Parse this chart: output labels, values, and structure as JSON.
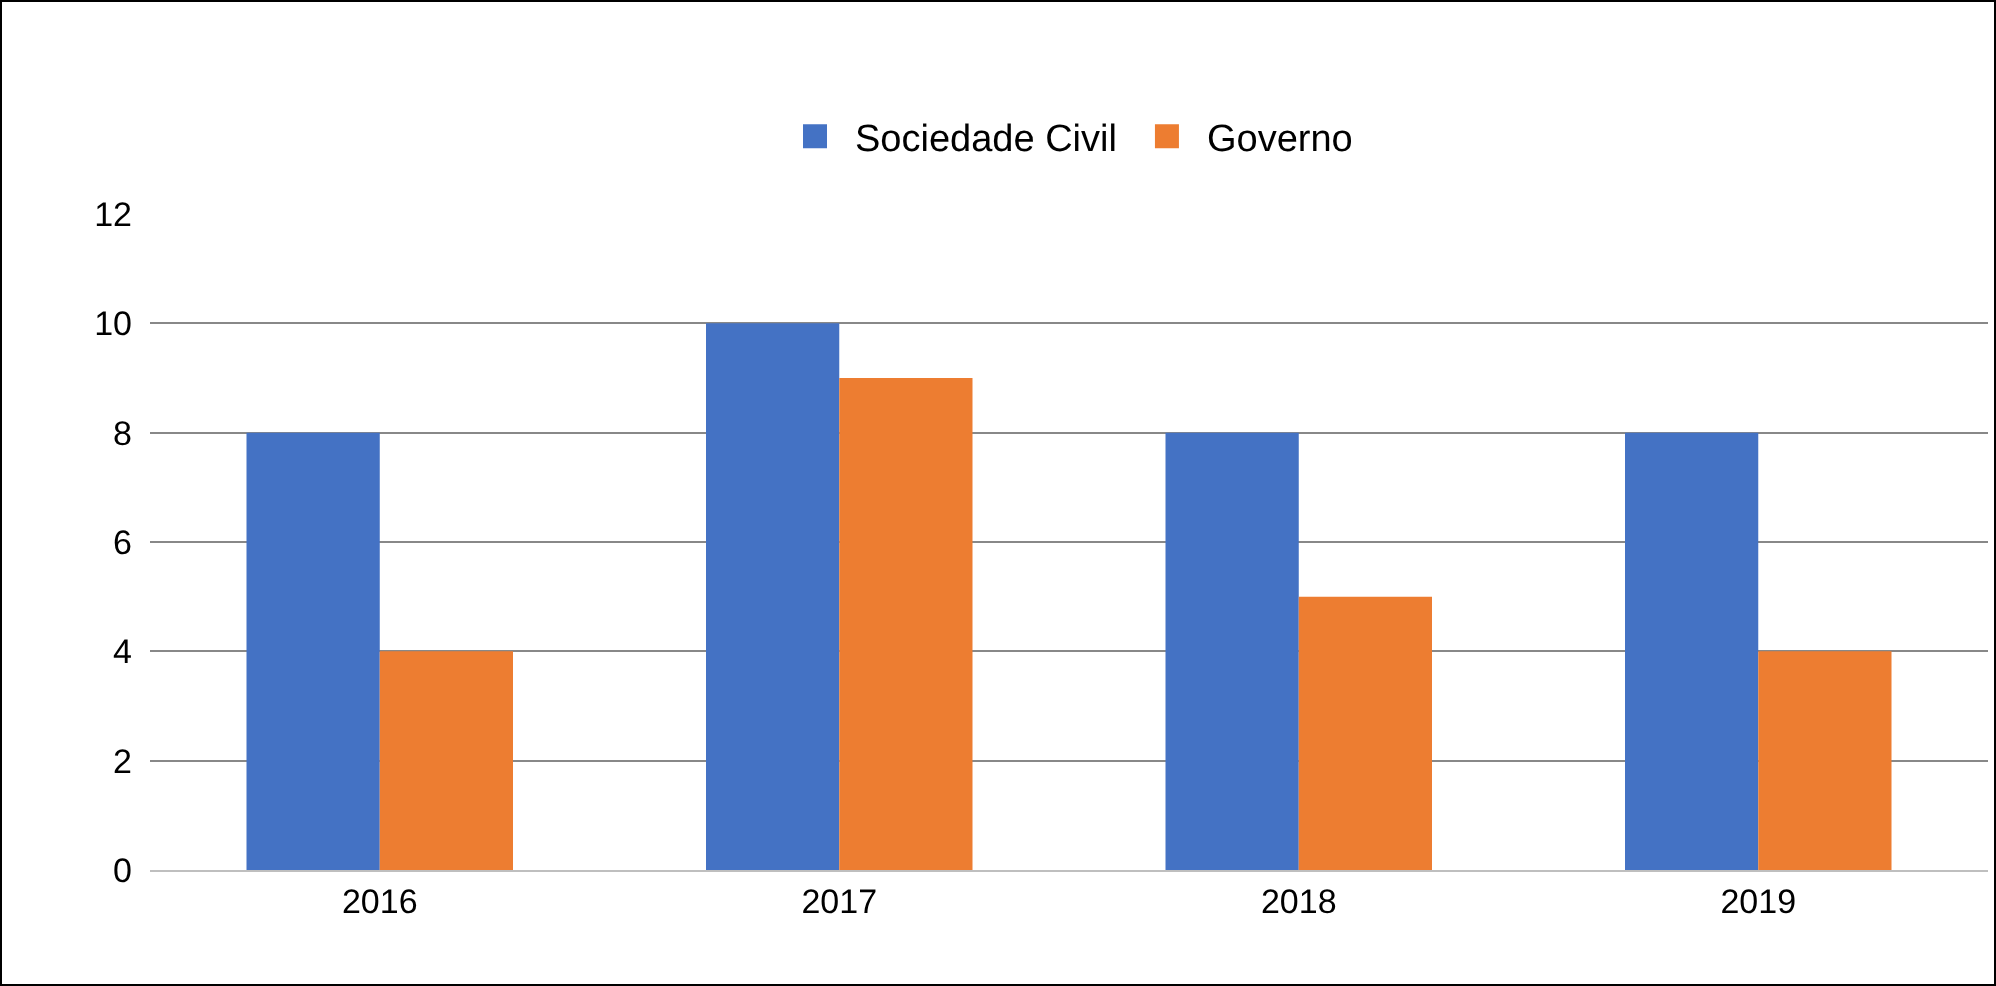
{
  "chart_data": {
    "type": "bar",
    "categories": [
      "2016",
      "2017",
      "2018",
      "2019"
    ],
    "series": [
      {
        "name": "Sociedade Civil",
        "color": "#4472c4",
        "values": [
          8,
          10,
          8,
          8
        ]
      },
      {
        "name": "Governo",
        "color": "#ed7d31",
        "values": [
          4,
          9,
          5,
          4
        ]
      }
    ],
    "ylim": [
      0,
      12
    ],
    "yticks": [
      0,
      2,
      4,
      6,
      8,
      10,
      12
    ],
    "grid": "y",
    "legend": "top"
  }
}
